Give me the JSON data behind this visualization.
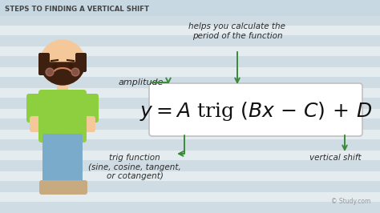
{
  "title": "STEPS TO FINDING A VERTICAL SHIFT",
  "bg_color": "#e4ecf0",
  "stripe_color": "#d0dce4",
  "title_bg": "#c8d8e2",
  "title_color": "#444444",
  "arrow_color": "#3a8a3a",
  "box_bg": "#ffffff",
  "box_border": "#cccccc",
  "label_amplitude": "amplitude",
  "label_period": "helps you calculate the\nperiod of the function",
  "label_trig": "trig function\n(sine, cosine, tangent,\nor cotangent)",
  "label_vshift": "vertical shift",
  "watermark": "© Study.com",
  "formula_color": "#111111",
  "text_color": "#2a2a2a",
  "skin_color": "#f5c89a",
  "hair_color": "#3d2010",
  "shirt_color": "#8ecf40",
  "pants_color": "#7aabca",
  "shoe_color": "#c8aa80"
}
